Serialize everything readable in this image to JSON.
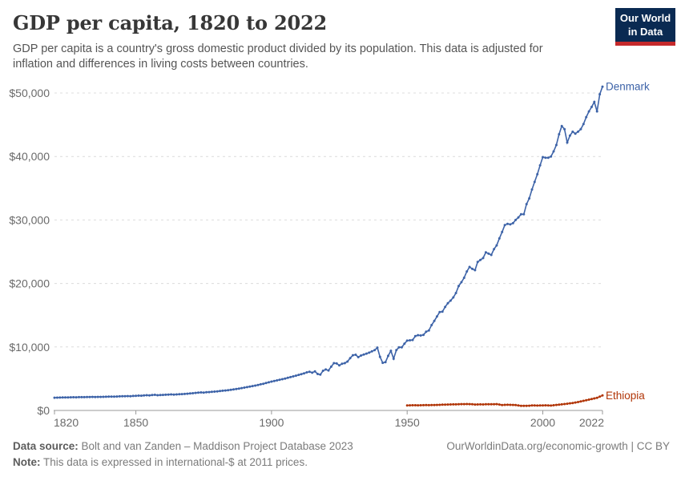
{
  "header": {
    "title": "GDP per capita, 1820 to 2022",
    "subtitle_line1": "GDP per capita is a country's gross domestic product divided by its population. This data is adjusted for",
    "subtitle_line2": "inflation and differences in living costs between countries.",
    "logo": {
      "line1": "Our World",
      "line2": "in Data",
      "bg_color": "#0A2A52",
      "accent_color": "#C5292B"
    }
  },
  "footer": {
    "source_label": "Data source:",
    "source_text": " Bolt and van Zanden – Maddison Project Database 2023",
    "note_label": "Note:",
    "note_text": " This data is expressed in international-$ at 2011 prices.",
    "link_text": "OurWorldinData.org/economic-growth | CC BY"
  },
  "colors": {
    "grid": "#dcdcdc",
    "axis": "#999999",
    "tick_label": "#6a6a6a",
    "denmark": "#3D63A8",
    "ethiopia": "#B13507"
  },
  "chart_data": {
    "type": "line",
    "title": "GDP per capita, 1820 to 2022",
    "xlim": [
      1820,
      2022
    ],
    "ylim": [
      0,
      51000
    ],
    "x_ticks": [
      1820,
      1850,
      1900,
      1950,
      2000,
      2022
    ],
    "y_ticks": [
      0,
      10000,
      20000,
      30000,
      40000,
      50000
    ],
    "y_tick_labels": [
      "$0",
      "$10,000",
      "$20,000",
      "$30,000",
      "$40,000",
      "$50,000"
    ],
    "grid": "dashed-horizontal",
    "legend_position": "line-end-labels",
    "units": "international-$ at 2011 prices",
    "series": [
      {
        "name": "Denmark",
        "color": "#3D63A8",
        "start_year": 1820,
        "values": [
          2010,
          2020,
          2030,
          2040,
          2050,
          2060,
          2070,
          2080,
          2070,
          2090,
          2100,
          2090,
          2110,
          2120,
          2130,
          2120,
          2140,
          2130,
          2150,
          2160,
          2180,
          2190,
          2180,
          2200,
          2220,
          2230,
          2250,
          2260,
          2240,
          2280,
          2300,
          2340,
          2320,
          2360,
          2400,
          2370,
          2430,
          2460,
          2400,
          2420,
          2450,
          2470,
          2500,
          2530,
          2490,
          2520,
          2550,
          2570,
          2600,
          2640,
          2680,
          2720,
          2760,
          2800,
          2840,
          2820,
          2860,
          2890,
          2930,
          2970,
          3010,
          3050,
          3100,
          3150,
          3200,
          3250,
          3310,
          3380,
          3450,
          3520,
          3600,
          3680,
          3760,
          3840,
          3920,
          4010,
          4110,
          4210,
          4320,
          4430,
          4550,
          4650,
          4740,
          4840,
          4930,
          5030,
          5140,
          5250,
          5360,
          5480,
          5600,
          5720,
          5840,
          6000,
          6100,
          5950,
          6150,
          5750,
          5650,
          6250,
          6450,
          6300,
          6900,
          7450,
          7400,
          7100,
          7350,
          7450,
          7700,
          8250,
          8700,
          8780,
          8400,
          8650,
          8800,
          8950,
          9100,
          9300,
          9500,
          9900,
          8450,
          7500,
          7600,
          8600,
          9400,
          8150,
          9500,
          9950,
          9950,
          10500,
          11000,
          11050,
          11100,
          11700,
          11850,
          11800,
          11900,
          12400,
          12600,
          13450,
          14100,
          14800,
          15500,
          15550,
          16300,
          16900,
          17300,
          17800,
          18500,
          19600,
          20200,
          20900,
          21900,
          22600,
          22300,
          22100,
          23400,
          23700,
          24000,
          24900,
          24700,
          24500,
          25400,
          26000,
          27100,
          28100,
          29200,
          29400,
          29300,
          29500,
          30000,
          30400,
          30900,
          30900,
          32500,
          33400,
          34800,
          36000,
          37200,
          38600,
          39900,
          39800,
          39800,
          40000,
          40800,
          41800,
          43500,
          44800,
          44300,
          42200,
          43300,
          43900,
          43600,
          43900,
          44300,
          45100,
          46200,
          47100,
          47800,
          48600,
          47100,
          49800,
          51000
        ]
      },
      {
        "name": "Ethiopia",
        "color": "#B13507",
        "start_year": 1950,
        "values": [
          800,
          810,
          815,
          820,
          810,
          825,
          835,
          840,
          835,
          845,
          860,
          875,
          890,
          905,
          920,
          930,
          945,
          955,
          965,
          980,
          995,
          1000,
          1010,
          1000,
          985,
          940,
          950,
          960,
          945,
          975,
          985,
          970,
          980,
          995,
          930,
          850,
          880,
          900,
          890,
          870,
          850,
          780,
          720,
          735,
          730,
          750,
          790,
          800,
          770,
          780,
          790,
          810,
          790,
          775,
          820,
          865,
          910,
          960,
          1010,
          1060,
          1120,
          1180,
          1250,
          1330,
          1420,
          1510,
          1600,
          1700,
          1790,
          1890,
          1990,
          2170,
          2360
        ]
      }
    ]
  }
}
